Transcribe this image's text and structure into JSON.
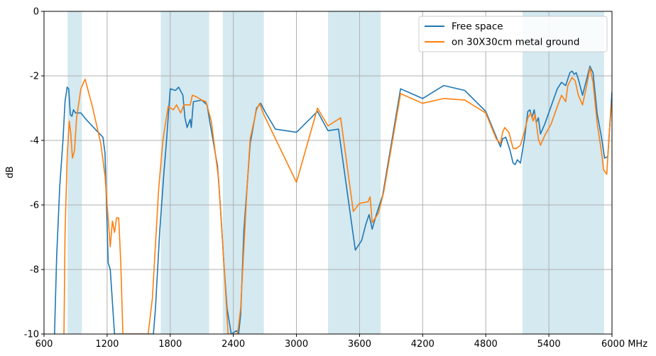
{
  "chart_data": {
    "type": "line",
    "title": "",
    "xlabel": "",
    "ylabel": "dB",
    "xlim": [
      600,
      6000
    ],
    "ylim": [
      -10,
      0
    ],
    "x_ticks": [
      600,
      1200,
      1800,
      2400,
      3000,
      3600,
      4200,
      4800,
      5400,
      6000
    ],
    "x_tick_labels": [
      "600",
      "1200",
      "1800",
      "2400",
      "3000",
      "3600",
      "4200",
      "4800",
      "5400",
      "6000 MHz"
    ],
    "y_ticks": [
      0,
      -2,
      -4,
      -6,
      -8,
      -10
    ],
    "y_tick_labels": [
      "0",
      "-2",
      "-4",
      "-6",
      "-8",
      "-10"
    ],
    "grid": true,
    "legend_position": "top-right",
    "shaded_bands": [
      [
        824,
        960
      ],
      [
        1710,
        2170
      ],
      [
        2300,
        2690
      ],
      [
        3300,
        3800
      ],
      [
        5150,
        5925
      ]
    ],
    "colors": {
      "band": "#d4e9f0",
      "grid": "#b0b0b0"
    },
    "series": [
      {
        "name": "Free space",
        "color": "#1f77b4",
        "points": [
          [
            700,
            -10
          ],
          [
            720,
            -7.6
          ],
          [
            750,
            -5.4
          ],
          [
            780,
            -4.0
          ],
          [
            800,
            -2.8
          ],
          [
            820,
            -2.35
          ],
          [
            835,
            -2.4
          ],
          [
            850,
            -3.2
          ],
          [
            865,
            -3.25
          ],
          [
            880,
            -3.05
          ],
          [
            900,
            -3.15
          ],
          [
            950,
            -3.15
          ],
          [
            1000,
            -3.35
          ],
          [
            1100,
            -3.7
          ],
          [
            1160,
            -3.9
          ],
          [
            1180,
            -4.4
          ],
          [
            1210,
            -7.8
          ],
          [
            1230,
            -8.0
          ],
          [
            1250,
            -9.0
          ],
          [
            1270,
            -10
          ],
          [
            1640,
            -10
          ],
          [
            1660,
            -9.2
          ],
          [
            1700,
            -6.8
          ],
          [
            1740,
            -5.0
          ],
          [
            1760,
            -4.2
          ],
          [
            1800,
            -2.4
          ],
          [
            1850,
            -2.45
          ],
          [
            1880,
            -2.35
          ],
          [
            1920,
            -2.6
          ],
          [
            1940,
            -3.3
          ],
          [
            1960,
            -3.6
          ],
          [
            1990,
            -3.35
          ],
          [
            2000,
            -3.6
          ],
          [
            2020,
            -2.8
          ],
          [
            2100,
            -2.75
          ],
          [
            2150,
            -2.9
          ],
          [
            2180,
            -3.5
          ],
          [
            2250,
            -4.8
          ],
          [
            2280,
            -6.2
          ],
          [
            2310,
            -7.8
          ],
          [
            2340,
            -9.2
          ],
          [
            2380,
            -10
          ],
          [
            2430,
            -9.9
          ],
          [
            2450,
            -10
          ],
          [
            2470,
            -9.4
          ],
          [
            2500,
            -6.8
          ],
          [
            2560,
            -4.1
          ],
          [
            2620,
            -3.0
          ],
          [
            2660,
            -2.85
          ],
          [
            2700,
            -3.1
          ],
          [
            2800,
            -3.65
          ],
          [
            3000,
            -3.75
          ],
          [
            3200,
            -3.1
          ],
          [
            3300,
            -3.7
          ],
          [
            3400,
            -3.65
          ],
          [
            3500,
            -6.0
          ],
          [
            3560,
            -7.4
          ],
          [
            3620,
            -7.1
          ],
          [
            3660,
            -6.6
          ],
          [
            3690,
            -6.3
          ],
          [
            3720,
            -6.75
          ],
          [
            3760,
            -6.3
          ],
          [
            3820,
            -5.7
          ],
          [
            3990,
            -2.4
          ],
          [
            4200,
            -2.7
          ],
          [
            4400,
            -2.3
          ],
          [
            4600,
            -2.45
          ],
          [
            4800,
            -3.1
          ],
          [
            4920,
            -4.05
          ],
          [
            4940,
            -4.2
          ],
          [
            4960,
            -3.95
          ],
          [
            4990,
            -3.9
          ],
          [
            5030,
            -4.3
          ],
          [
            5060,
            -4.7
          ],
          [
            5080,
            -4.75
          ],
          [
            5100,
            -4.6
          ],
          [
            5130,
            -4.7
          ],
          [
            5170,
            -3.9
          ],
          [
            5200,
            -3.1
          ],
          [
            5220,
            -3.05
          ],
          [
            5240,
            -3.3
          ],
          [
            5260,
            -3.05
          ],
          [
            5280,
            -3.45
          ],
          [
            5300,
            -3.3
          ],
          [
            5320,
            -3.8
          ],
          [
            5360,
            -3.5
          ],
          [
            5420,
            -2.95
          ],
          [
            5480,
            -2.4
          ],
          [
            5520,
            -2.2
          ],
          [
            5560,
            -2.3
          ],
          [
            5600,
            -1.9
          ],
          [
            5620,
            -1.85
          ],
          [
            5640,
            -1.95
          ],
          [
            5660,
            -1.9
          ],
          [
            5680,
            -2.1
          ],
          [
            5720,
            -2.6
          ],
          [
            5760,
            -2.1
          ],
          [
            5790,
            -1.7
          ],
          [
            5820,
            -1.9
          ],
          [
            5860,
            -3.2
          ],
          [
            5900,
            -3.9
          ],
          [
            5930,
            -4.55
          ],
          [
            5960,
            -4.5
          ],
          [
            6000,
            -2.5
          ]
        ]
      },
      {
        "name": "on 30X30cm metal ground",
        "color": "#ff7f0e",
        "points": [
          [
            790,
            -10
          ],
          [
            800,
            -6.9
          ],
          [
            820,
            -4.5
          ],
          [
            840,
            -3.4
          ],
          [
            855,
            -3.8
          ],
          [
            870,
            -4.55
          ],
          [
            890,
            -4.3
          ],
          [
            910,
            -3.3
          ],
          [
            950,
            -2.4
          ],
          [
            990,
            -2.1
          ],
          [
            1060,
            -2.95
          ],
          [
            1140,
            -4.1
          ],
          [
            1180,
            -5.1
          ],
          [
            1230,
            -7.3
          ],
          [
            1250,
            -6.5
          ],
          [
            1270,
            -6.85
          ],
          [
            1290,
            -6.4
          ],
          [
            1310,
            -6.4
          ],
          [
            1330,
            -7.8
          ],
          [
            1350,
            -10
          ],
          [
            1590,
            -10
          ],
          [
            1630,
            -8.9
          ],
          [
            1690,
            -5.5
          ],
          [
            1730,
            -4.0
          ],
          [
            1780,
            -2.95
          ],
          [
            1830,
            -3.05
          ],
          [
            1860,
            -2.9
          ],
          [
            1900,
            -3.15
          ],
          [
            1930,
            -2.9
          ],
          [
            1990,
            -2.9
          ],
          [
            2010,
            -2.6
          ],
          [
            2050,
            -2.65
          ],
          [
            2100,
            -2.75
          ],
          [
            2140,
            -2.8
          ],
          [
            2190,
            -3.4
          ],
          [
            2260,
            -5.2
          ],
          [
            2310,
            -7.8
          ],
          [
            2350,
            -10
          ],
          [
            2400,
            -10
          ],
          [
            2440,
            -10
          ],
          [
            2470,
            -9.2
          ],
          [
            2530,
            -5.5
          ],
          [
            2560,
            -3.95
          ],
          [
            2620,
            -3.05
          ],
          [
            2650,
            -2.85
          ],
          [
            2690,
            -3.2
          ],
          [
            3000,
            -5.3
          ],
          [
            3200,
            -3.0
          ],
          [
            3300,
            -3.55
          ],
          [
            3420,
            -3.3
          ],
          [
            3540,
            -6.2
          ],
          [
            3600,
            -5.95
          ],
          [
            3680,
            -5.9
          ],
          [
            3700,
            -5.75
          ],
          [
            3720,
            -6.55
          ],
          [
            3780,
            -6.25
          ],
          [
            3830,
            -5.6
          ],
          [
            3990,
            -2.55
          ],
          [
            4200,
            -2.85
          ],
          [
            4400,
            -2.7
          ],
          [
            4600,
            -2.75
          ],
          [
            4800,
            -3.15
          ],
          [
            4900,
            -3.95
          ],
          [
            4940,
            -4.1
          ],
          [
            4960,
            -3.75
          ],
          [
            4980,
            -3.6
          ],
          [
            5020,
            -3.75
          ],
          [
            5060,
            -4.25
          ],
          [
            5090,
            -4.25
          ],
          [
            5130,
            -4.15
          ],
          [
            5170,
            -3.7
          ],
          [
            5200,
            -3.3
          ],
          [
            5230,
            -3.15
          ],
          [
            5250,
            -3.4
          ],
          [
            5270,
            -3.2
          ],
          [
            5300,
            -3.95
          ],
          [
            5320,
            -4.15
          ],
          [
            5360,
            -3.85
          ],
          [
            5420,
            -3.5
          ],
          [
            5480,
            -2.95
          ],
          [
            5520,
            -2.6
          ],
          [
            5560,
            -2.8
          ],
          [
            5580,
            -2.3
          ],
          [
            5620,
            -2.05
          ],
          [
            5650,
            -2.15
          ],
          [
            5680,
            -2.6
          ],
          [
            5720,
            -2.9
          ],
          [
            5760,
            -2.3
          ],
          [
            5790,
            -1.75
          ],
          [
            5820,
            -2.2
          ],
          [
            5860,
            -3.5
          ],
          [
            5900,
            -4.35
          ],
          [
            5920,
            -4.9
          ],
          [
            5950,
            -5.05
          ],
          [
            5980,
            -3.5
          ],
          [
            6000,
            -2.8
          ]
        ]
      }
    ]
  }
}
